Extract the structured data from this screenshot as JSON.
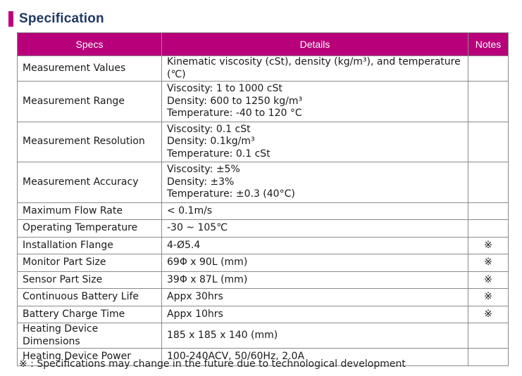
{
  "section_title": "Specification",
  "table": {
    "headers": {
      "specs": "Specs",
      "details": "Details",
      "notes": "Notes"
    },
    "rows": [
      {
        "spec": "Measurement Values",
        "details": [
          "Kinematic viscosity (cSt), density (kg/m³), and temperature (℃)"
        ],
        "note": ""
      },
      {
        "spec": "Measurement Range",
        "details": [
          "Viscosity: 1 to 1000 cSt",
          "Density: 600 to 1250 kg/m³",
          "Temperature: -40 to 120 °C"
        ],
        "note": ""
      },
      {
        "spec": "Measurement Resolution",
        "details": [
          "Viscosity: 0.1 cSt",
          "Density: 0.1kg/m³",
          "Temperature: 0.1 cSt"
        ],
        "note": ""
      },
      {
        "spec": "Measurement Accuracy",
        "details": [
          "Viscosity: ±5%",
          "Density: ±3%",
          "Temperature: ±0.3 (40°C)"
        ],
        "note": ""
      },
      {
        "spec": "Maximum Flow Rate",
        "details": [
          "< 0.1m/s"
        ],
        "note": ""
      },
      {
        "spec": "Operating Temperature",
        "details": [
          "-30 ~ 105℃"
        ],
        "note": ""
      },
      {
        "spec": "Installation Flange",
        "details": [
          "4-Ø5.4"
        ],
        "note": "※"
      },
      {
        "spec": "Monitor Part Size",
        "details": [
          "69Φ x 90L (mm)"
        ],
        "note": "※"
      },
      {
        "spec": "Sensor Part Size",
        "details": [
          "39Φ x 87L (mm)"
        ],
        "note": "※"
      },
      {
        "spec": "Continuous Battery Life",
        "details": [
          "Appx 30hrs"
        ],
        "note": "※"
      },
      {
        "spec": "Battery Charge Time",
        "details": [
          "Appx 10hrs"
        ],
        "note": "※"
      },
      {
        "spec": "Heating Device Dimensions",
        "details": [
          "185 x 185 x 140 (mm)"
        ],
        "note": ""
      },
      {
        "spec": "Heating Device Power",
        "details": [
          "100-240ACV, 50/60Hz, 2.0A"
        ],
        "note": ""
      }
    ]
  },
  "footnote": "※ : Specifications may change in the future due to technological development",
  "colors": {
    "header_bg": "#b8007a",
    "title_text": "#1f3864",
    "accent": "#c0007a"
  }
}
